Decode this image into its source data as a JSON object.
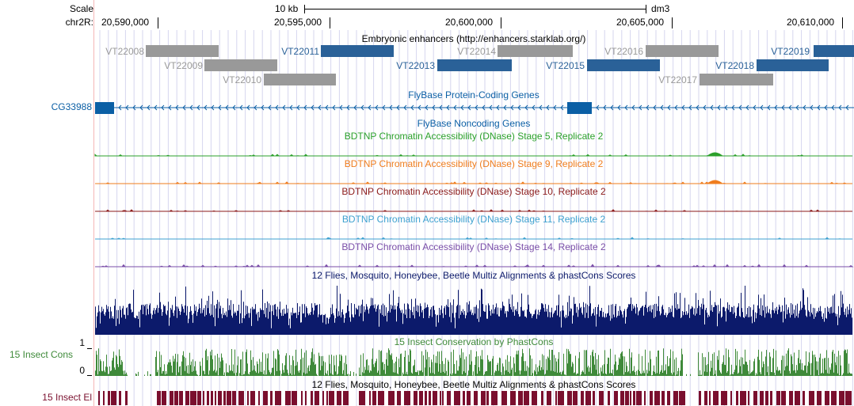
{
  "ruler": {
    "scale_label": "Scale",
    "chrom_label": "chr2R:",
    "scale_bar_label": "10 kb",
    "assembly": "dm3",
    "coords": [
      "20,590,000",
      "20,595,000",
      "20,600,000",
      "20,605,000",
      "20,610,000"
    ]
  },
  "enhancers": {
    "title": "Embryonic enhancers (http://enhancers.starklab.org/)",
    "items": [
      {
        "name": "VT22008",
        "row": 0,
        "color": "#999999",
        "label_color": "#999999"
      },
      {
        "name": "VT22009",
        "row": 1,
        "color": "#999999",
        "label_color": "#999999"
      },
      {
        "name": "VT22010",
        "row": 2,
        "color": "#999999",
        "label_color": "#999999"
      },
      {
        "name": "VT22011",
        "row": 0,
        "color": "#2a6198",
        "label_color": "#2a6198"
      },
      {
        "name": "VT22013",
        "row": 1,
        "color": "#2a6198",
        "label_color": "#2a6198"
      },
      {
        "name": "VT22014",
        "row": 0,
        "color": "#999999",
        "label_color": "#999999"
      },
      {
        "name": "VT22015",
        "row": 1,
        "color": "#2a6198",
        "label_color": "#2a6198"
      },
      {
        "name": "VT22016",
        "row": 0,
        "color": "#999999",
        "label_color": "#999999"
      },
      {
        "name": "VT22017",
        "row": 2,
        "color": "#999999",
        "label_color": "#999999"
      },
      {
        "name": "VT22018",
        "row": 1,
        "color": "#2a6198",
        "label_color": "#2a6198"
      },
      {
        "name": "VT22019",
        "row": 0,
        "color": "#2a6198",
        "label_color": "#2a6198"
      }
    ]
  },
  "genes": {
    "title": "FlyBase Protein-Coding Genes",
    "gene_name": "CG33988",
    "color": "#0b5fa5"
  },
  "noncoding": {
    "title": "FlyBase Noncoding Genes"
  },
  "dnase_tracks": [
    {
      "title": "BDTNP Chromatin Accessibility (DNase) Stage 5, Replicate 2",
      "color": "#2ba02b"
    },
    {
      "title": "BDTNP Chromatin Accessibility (DNase) Stage 9, Replicate 2",
      "color": "#ef7d1e"
    },
    {
      "title": "BDTNP Chromatin Accessibility (DNase) Stage 10, Replicate 2",
      "color": "#8b1a1a"
    },
    {
      "title": "BDTNP Chromatin Accessibility (DNase) Stage 11, Replicate 2",
      "color": "#3ea1d0"
    },
    {
      "title": "BDTNP Chromatin Accessibility (DNase) Stage 14, Replicate 2",
      "color": "#7a4ea8"
    }
  ],
  "multiz": {
    "title": "12 Flies, Mosquito, Honeybee, Beetle Multiz Alignments & phastCons Scores",
    "color": "#0c1a6b"
  },
  "phastcons": {
    "title": "15 Insect Conservation by PhastCons",
    "side_label": "15 Insect Cons",
    "axis_max": "1",
    "axis_min": "0",
    "color": "#3f8a3a"
  },
  "elements": {
    "title": "12 Flies, Mosquito, Honeybee, Beetle Multiz Alignments & phastCons Scores",
    "side_label": "15 Insect El",
    "color": "#7a0f2e"
  }
}
